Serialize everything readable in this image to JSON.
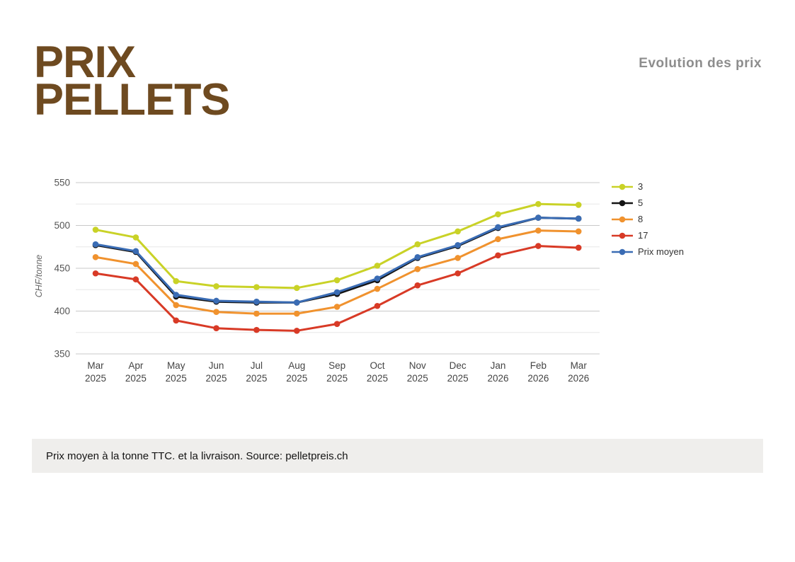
{
  "header": {
    "logo_line1": "PRIX",
    "logo_line2": "PELLETS",
    "logo_color": "#6e4a20",
    "title": "Evolution des prix"
  },
  "chart_data": {
    "type": "line",
    "title": "Evolution des prix",
    "xlabel": "",
    "ylabel": "CHF/tonne",
    "ylim": [
      350,
      550
    ],
    "y_ticks": [
      350,
      400,
      450,
      500,
      550
    ],
    "y_minor_gridlines": [
      375,
      425,
      475,
      525
    ],
    "grid": true,
    "legend_position": "right",
    "categories": [
      "Mar 2025",
      "Apr 2025",
      "May 2025",
      "Jun 2025",
      "Jul 2025",
      "Aug 2025",
      "Sep 2025",
      "Oct 2025",
      "Nov 2025",
      "Dec 2025",
      "Jan 2026",
      "Feb 2026",
      "Mar 2026"
    ],
    "series": [
      {
        "name": "3",
        "color": "#c9d227",
        "values": [
          495,
          486,
          435,
          429,
          428,
          427,
          436,
          453,
          478,
          493,
          513,
          525,
          524
        ]
      },
      {
        "name": "5",
        "color": "#141414",
        "values": [
          477,
          469,
          417,
          411,
          410,
          410,
          420,
          436,
          462,
          476,
          497,
          509,
          508
        ]
      },
      {
        "name": "8",
        "color": "#f0922e",
        "values": [
          463,
          455,
          407,
          399,
          397,
          397,
          405,
          426,
          449,
          462,
          484,
          494,
          493
        ]
      },
      {
        "name": "17",
        "color": "#d83a26",
        "values": [
          444,
          437,
          389,
          380,
          378,
          377,
          385,
          406,
          430,
          444,
          465,
          476,
          474
        ]
      },
      {
        "name": "Prix moyen",
        "color": "#3a6cb4",
        "values": [
          478,
          470,
          419,
          412,
          411,
          410,
          422,
          438,
          463,
          477,
          498,
          509,
          508
        ]
      }
    ]
  },
  "caption": "Prix moyen à la tonne TTC. et la livraison. Source: pelletpreis.ch"
}
